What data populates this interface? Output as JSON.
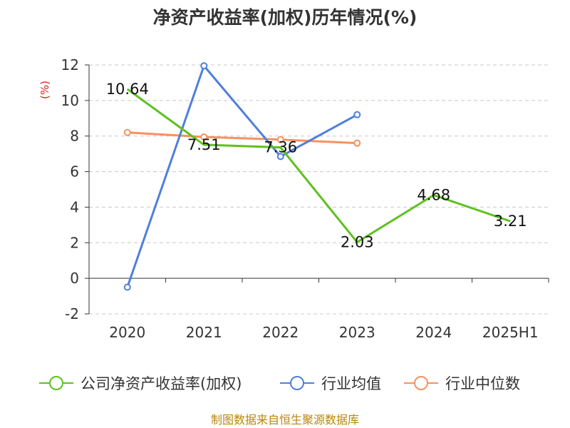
{
  "title": "净资产收益率(加权)历年情况(%)",
  "unit_label": "(%)",
  "source": "制图数据来自恒生聚源数据库",
  "colors": {
    "company": "#5ec020",
    "industry_avg": "#4f7fda",
    "industry_median": "#f5925f",
    "grid": "#c8c8c8",
    "axis": "#333333"
  },
  "chart_data": {
    "type": "line",
    "title": "净资产收益率(加权)历年情况(%)",
    "ylabel": "(%)",
    "categories": [
      "2020",
      "2021",
      "2022",
      "2023",
      "2024",
      "2025H1"
    ],
    "ylim": [
      -2,
      12
    ],
    "yticks": [
      -2,
      0,
      2,
      4,
      6,
      8,
      10,
      12
    ],
    "grid": "dashed horizontal",
    "legend_position": "bottom",
    "series": [
      {
        "name": "公司净资产收益率(加权)",
        "color": "#5ec020",
        "marker": false,
        "values": [
          10.64,
          7.51,
          7.36,
          2.03,
          4.68,
          3.21
        ],
        "labels": [
          "10.64",
          "7.51",
          "7.36",
          "2.03",
          "4.68",
          "3.21"
        ]
      },
      {
        "name": "行业均值",
        "color": "#4f7fda",
        "marker": true,
        "values": [
          -0.5,
          11.95,
          6.85,
          9.2,
          null,
          null
        ]
      },
      {
        "name": "行业中位数",
        "color": "#f5925f",
        "marker": true,
        "values": [
          8.2,
          7.95,
          7.8,
          7.6,
          null,
          null
        ]
      }
    ]
  }
}
